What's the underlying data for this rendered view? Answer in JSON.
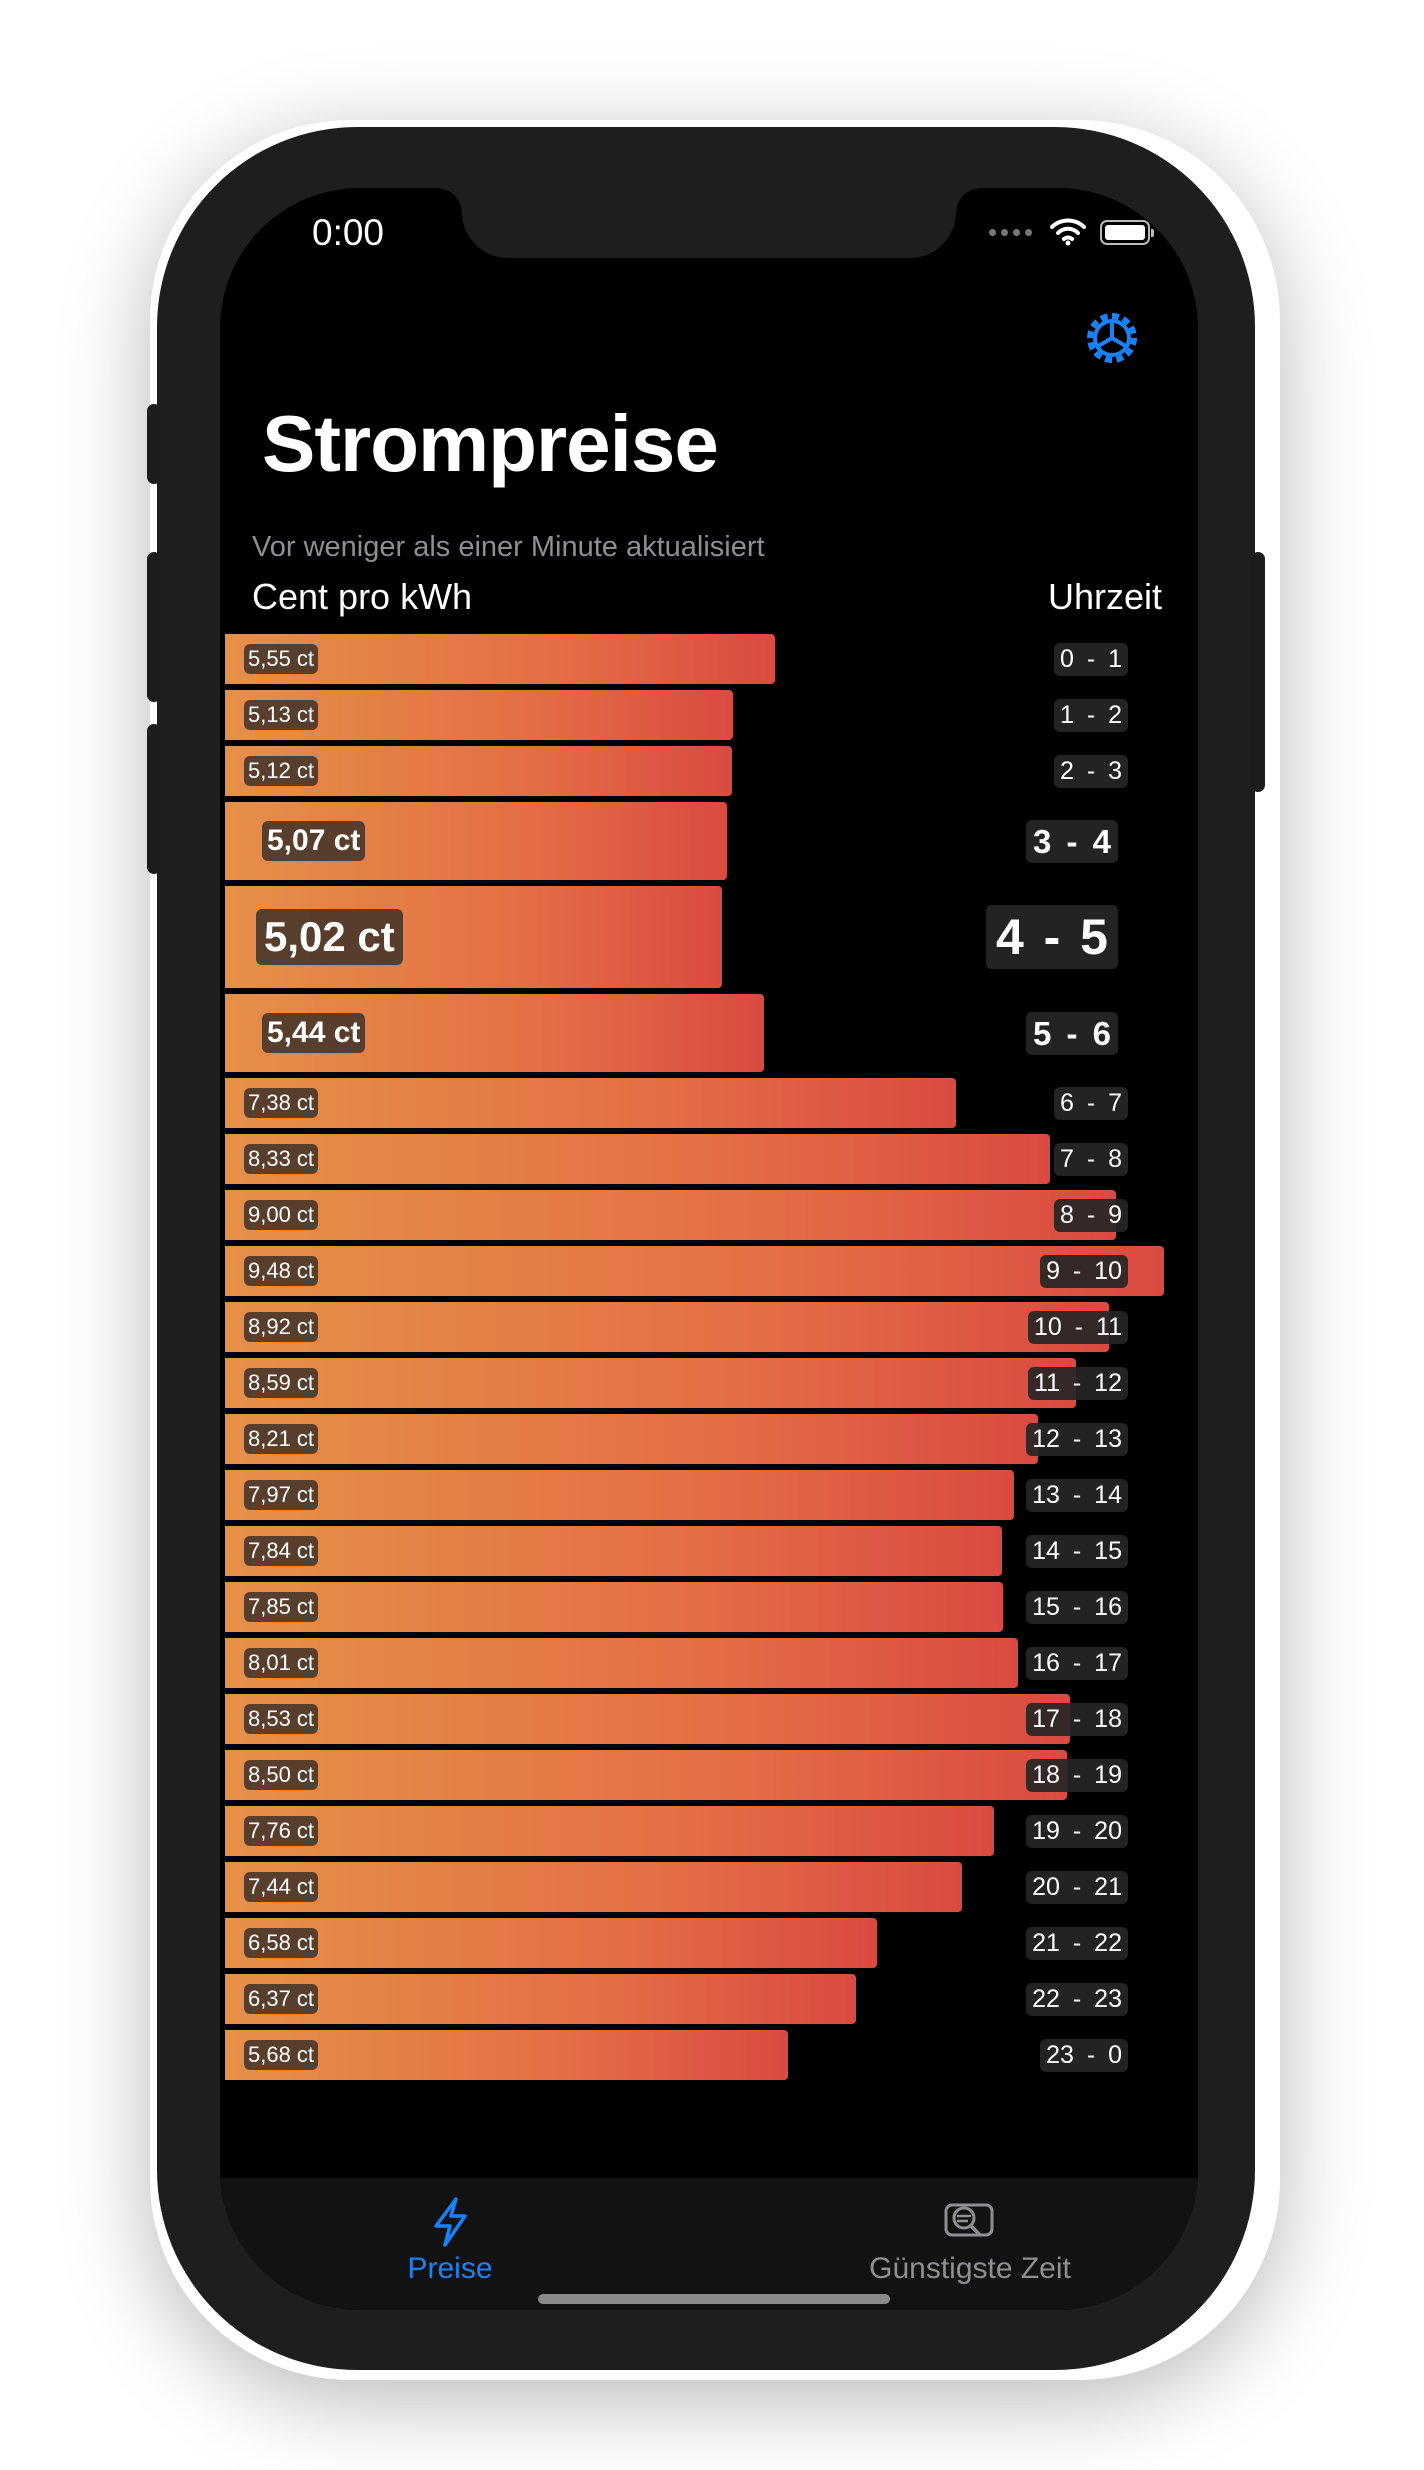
{
  "status_bar": {
    "time": "0:00"
  },
  "header": {
    "title": "Strompreise",
    "subtitle": "Vor weniger als einer Minute aktualisiert",
    "col_left": "Cent pro kWh",
    "col_right": "Uhrzeit"
  },
  "chart_data": {
    "type": "bar",
    "orientation": "horizontal",
    "value_unit": "ct",
    "current_index": 4,
    "categories": [
      "0 - 1",
      "1 - 2",
      "2 - 3",
      "3 - 4",
      "4 - 5",
      "5 - 6",
      "6 - 7",
      "7 - 8",
      "8 - 9",
      "9 - 10",
      "10 - 11",
      "11 - 12",
      "12 - 13",
      "13 - 14",
      "14 - 15",
      "15 - 16",
      "16 - 17",
      "17 - 18",
      "18 - 19",
      "19 - 20",
      "20 - 21",
      "21 - 22",
      "22 - 23",
      "23 - 0"
    ],
    "values": [
      5.55,
      5.13,
      5.12,
      5.07,
      5.02,
      5.44,
      7.38,
      8.33,
      9.0,
      9.48,
      8.92,
      8.59,
      8.21,
      7.97,
      7.84,
      7.85,
      8.01,
      8.53,
      8.5,
      7.76,
      7.44,
      6.58,
      6.37,
      5.68
    ],
    "value_labels": [
      "5,55 ct",
      "5,13 ct",
      "5,12 ct",
      "5,07 ct",
      "5,02 ct",
      "5,44 ct",
      "7,38 ct",
      "8,33 ct",
      "9,00 ct",
      "9,48 ct",
      "8,92 ct",
      "8,59 ct",
      "8,21 ct",
      "7,97 ct",
      "7,84 ct",
      "7,85 ct",
      "8,01 ct",
      "8,53 ct",
      "8,50 ct",
      "7,76 ct",
      "7,44 ct",
      "6,58 ct",
      "6,37 ct",
      "5,68 ct"
    ],
    "xlim": [
      0,
      9.48
    ],
    "colors": {
      "bar_start": "#e69049",
      "bar_end": "#db4a42"
    }
  },
  "tabbar": {
    "tabs": [
      {
        "label": "Preise",
        "icon": "bolt-icon",
        "active": true
      },
      {
        "label": "Günstigste Zeit",
        "icon": "search-list-icon",
        "active": false
      }
    ],
    "active_color": "#1a82f7",
    "inactive_color": "#8e8e93"
  }
}
